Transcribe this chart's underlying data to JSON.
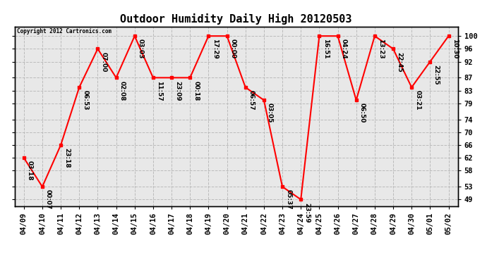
{
  "title": "Outdoor Humidity Daily High 20120503",
  "copyright": "Copyright 2012 Cartronics.com",
  "x_labels": [
    "04/09",
    "04/10",
    "04/11",
    "04/12",
    "04/13",
    "04/14",
    "04/15",
    "04/16",
    "04/17",
    "04/18",
    "04/19",
    "04/20",
    "04/21",
    "04/22",
    "04/23",
    "04/24",
    "04/25",
    "04/26",
    "04/27",
    "04/28",
    "04/29",
    "04/30",
    "05/01",
    "05/02"
  ],
  "y_values": [
    62,
    53,
    66,
    84,
    96,
    87,
    100,
    87,
    87,
    87,
    100,
    100,
    84,
    80,
    53,
    49,
    100,
    100,
    80,
    100,
    96,
    84,
    92,
    100
  ],
  "point_labels": [
    "03:18",
    "00:07",
    "23:18",
    "06:53",
    "07:00",
    "02:08",
    "03:03",
    "11:57",
    "23:09",
    "00:18",
    "17:29",
    "00:00",
    "06:57",
    "03:05",
    "05:37",
    "23:59",
    "16:51",
    "04:24",
    "06:50",
    "13:23",
    "22:45",
    "03:21",
    "22:55",
    "10:30"
  ],
  "y_ticks": [
    49,
    53,
    58,
    62,
    66,
    70,
    74,
    79,
    83,
    87,
    92,
    96,
    100
  ],
  "ylim": [
    47,
    103
  ],
  "line_color": "red",
  "marker_color": "red",
  "bg_color": "#e8e8e8",
  "grid_color": "#bbbbbb",
  "title_fontsize": 11,
  "label_fontsize": 6.5,
  "tick_fontsize": 7.5
}
